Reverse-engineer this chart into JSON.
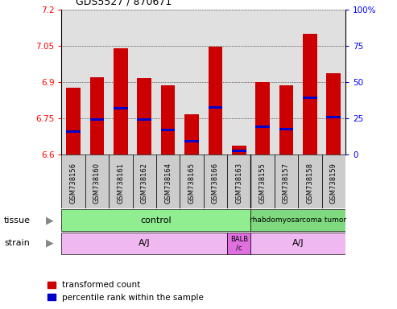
{
  "title": "GDS5527 / 870671",
  "samples": [
    "GSM738156",
    "GSM738160",
    "GSM738161",
    "GSM738162",
    "GSM738164",
    "GSM738165",
    "GSM738166",
    "GSM738163",
    "GSM738155",
    "GSM738157",
    "GSM738158",
    "GSM738159"
  ],
  "bar_tops": [
    6.875,
    6.92,
    7.04,
    6.915,
    6.885,
    6.765,
    7.045,
    6.635,
    6.9,
    6.885,
    7.1,
    6.935
  ],
  "bar_bottoms": [
    6.6,
    6.6,
    6.6,
    6.6,
    6.6,
    6.6,
    6.6,
    6.6,
    6.6,
    6.6,
    6.6,
    6.6
  ],
  "blue_marks": [
    6.695,
    6.745,
    6.79,
    6.745,
    6.7,
    6.655,
    6.795,
    6.615,
    6.715,
    6.705,
    6.835,
    6.755
  ],
  "ylim": [
    6.6,
    7.2
  ],
  "yticks": [
    6.6,
    6.75,
    6.9,
    7.05,
    7.2
  ],
  "ytick_labels": [
    "6.6",
    "6.75",
    "6.9",
    "7.05",
    "7.2"
  ],
  "right_yticks": [
    0,
    25,
    50,
    75,
    100
  ],
  "right_ytick_labels": [
    "0",
    "25",
    "50",
    "75",
    "100%"
  ],
  "bar_color": "#CC0000",
  "blue_color": "#0000CC",
  "tissue_control_label": "control",
  "tissue_tumor_label": "rhabdomyosarcoma tumor",
  "tissue_control_color": "#90EE90",
  "tissue_tumor_color": "#7FD97F",
  "strain_aj_label": "A/J",
  "strain_balbc_label": "BALB\n/c",
  "strain_color": "#F0B8F0",
  "strain_balbc_color": "#E070E0",
  "xlabel_bg": "#CCCCCC",
  "legend_red_label": "transformed count",
  "legend_blue_label": "percentile rank within the sample",
  "plot_bg": "#E0E0E0",
  "n_control": 8,
  "n_total": 12
}
